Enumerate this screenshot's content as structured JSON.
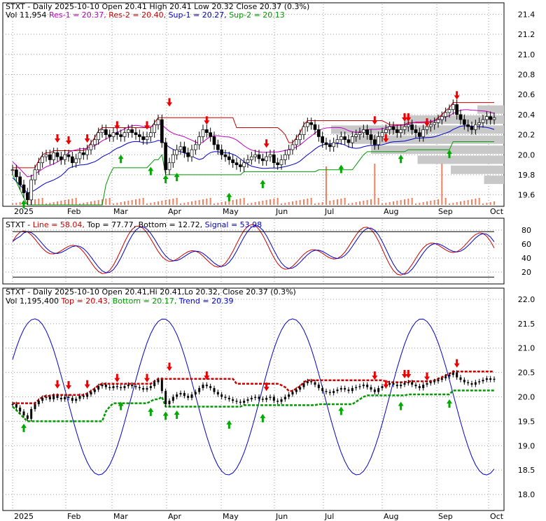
{
  "colors": {
    "up": "#000000",
    "down": "#000000",
    "res1": "#c000c0",
    "res2": "#cc0000",
    "sup1": "#0000cc",
    "sup2": "#009900",
    "macd": "#cc0000",
    "signal": "#0000cc",
    "buy": "#00aa00",
    "sell": "#ee0000",
    "volume": "#f08060",
    "profile": "#c8c8c8"
  },
  "chart_data": [
    {
      "type": "candlestick",
      "header": {
        "symbol": "STXT",
        "date": "Daily 2025-10-10",
        "open": "Open 20.41",
        "high": "High 20.41",
        "low": "Low 20.32",
        "close": "Close 20.37 (0.3%)",
        "vol": "Vol 11,954",
        "res1": "Res-1 = 20.37,",
        "res2": "Res-2 = 20.40,",
        "sup1": "Sup-1 = 20.27,",
        "sup2": "Sup-2 = 20.13"
      },
      "x_labels": [
        "2025",
        "Feb",
        "Mar",
        "Apr",
        "May",
        "Jun",
        "Jul",
        "Aug",
        "Sep",
        "Oct"
      ],
      "y_ticks": [
        "21.4",
        "21.2",
        "21.0",
        "20.8",
        "20.6",
        "20.4",
        "20.2",
        "20.0",
        "19.8",
        "19.6"
      ],
      "ylim": [
        19.5,
        21.5
      ],
      "close_series": [
        19.85,
        19.78,
        19.7,
        19.62,
        19.55,
        19.75,
        19.85,
        19.92,
        19.98,
        20.0,
        19.95,
        20.02,
        19.98,
        19.95,
        20.0,
        19.98,
        19.92,
        19.96,
        20.02,
        20.0,
        20.05,
        20.1,
        20.15,
        20.22,
        20.25,
        20.2,
        20.18,
        20.22,
        20.2,
        20.18,
        20.22,
        20.25,
        20.22,
        20.2,
        20.18,
        20.15,
        20.18,
        20.22,
        20.3,
        20.35,
        20.12,
        19.85,
        19.92,
        20.0,
        20.05,
        20.08,
        20.02,
        19.98,
        20.05,
        20.1,
        20.18,
        20.25,
        20.22,
        20.18,
        20.1,
        20.05,
        20.0,
        19.98,
        19.95,
        19.92,
        19.9,
        19.88,
        19.92,
        19.95,
        19.98,
        20.0,
        19.96,
        19.94,
        19.98,
        20.0,
        19.92,
        19.9,
        19.95,
        20.0,
        20.05,
        20.1,
        20.15,
        20.2,
        20.28,
        20.32,
        20.3,
        20.25,
        20.18,
        20.12,
        20.1,
        20.08,
        20.12,
        20.15,
        20.18,
        20.15,
        20.12,
        20.18,
        20.2,
        20.22,
        20.25,
        20.2,
        20.15,
        20.1,
        20.18,
        20.22,
        20.25,
        20.28,
        20.25,
        20.22,
        20.25,
        20.28,
        20.3,
        20.25,
        20.22,
        20.18,
        20.25,
        20.28,
        20.3,
        20.32,
        20.35,
        20.38,
        20.42,
        20.45,
        20.5,
        20.4,
        20.35,
        20.3,
        20.28,
        20.25,
        20.3,
        20.32,
        20.35,
        20.38,
        20.35,
        20.37
      ],
      "buy_arrows": [
        {
          "i": 3,
          "v": 19.55
        },
        {
          "i": 29,
          "v": 20.0
        },
        {
          "i": 37,
          "v": 19.88
        },
        {
          "i": 41,
          "v": 19.8
        },
        {
          "i": 44,
          "v": 19.82
        },
        {
          "i": 58,
          "v": 19.62
        },
        {
          "i": 67,
          "v": 19.75
        },
        {
          "i": 88,
          "v": 19.9
        },
        {
          "i": 104,
          "v": 20.0
        },
        {
          "i": 117,
          "v": 20.05
        }
      ],
      "sell_arrows": [
        {
          "i": 12,
          "v": 20.12
        },
        {
          "i": 15,
          "v": 20.1
        },
        {
          "i": 20,
          "v": 20.12
        },
        {
          "i": 28,
          "v": 20.25
        },
        {
          "i": 36,
          "v": 20.25
        },
        {
          "i": 42,
          "v": 20.48
        },
        {
          "i": 52,
          "v": 20.3
        },
        {
          "i": 68,
          "v": 20.07
        },
        {
          "i": 97,
          "v": 20.3
        },
        {
          "i": 100,
          "v": 20.12
        },
        {
          "i": 105,
          "v": 20.33
        },
        {
          "i": 106,
          "v": 20.33
        },
        {
          "i": 111,
          "v": 20.28
        },
        {
          "i": 119,
          "v": 20.55
        }
      ]
    },
    {
      "type": "line",
      "header": {
        "symbol": "STXT",
        "line": "Line = 58.04,",
        "top": "Top = 77.77,",
        "bottom": "Bottom = 12.72,",
        "signal": "Signal = 53.98"
      },
      "y_ticks": [
        "80",
        "60",
        "40",
        "20"
      ],
      "ylim": [
        5,
        95
      ]
    },
    {
      "type": "candlestick",
      "header": {
        "symbol": "STXT",
        "date": "Daily 2025-10-10",
        "open": "Open 20.41,",
        "high": "Hi 20.41,",
        "low": "Lo 20.32,",
        "close": "Close 20.37 (0.3%)",
        "vol": "Vol 1,195,400",
        "top": "Top = 20.43,",
        "bottom": "Bottom = 20.17,",
        "trend": "Trend = 20.39"
      },
      "x_labels": [
        "2025",
        "Feb",
        "Mar",
        "Apr",
        "May",
        "Jun",
        "Jul",
        "Aug",
        "Sep",
        "Oct"
      ],
      "y_ticks": [
        "22.0",
        "21.5",
        "21.0",
        "20.5",
        "20.0",
        "19.5",
        "19.0",
        "18.5",
        "18.0"
      ],
      "ylim": [
        17.7,
        22.2
      ]
    }
  ]
}
